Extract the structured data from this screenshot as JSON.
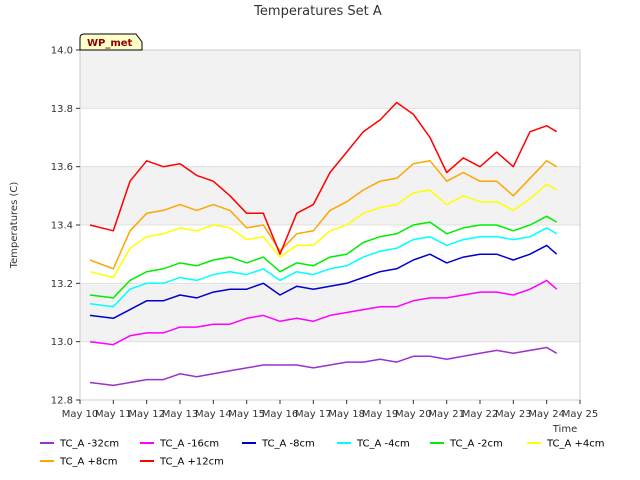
{
  "chart_data": {
    "type": "line",
    "title": "Temperatures Set A",
    "xlabel": "Time",
    "ylabel": "Temperatures (C)",
    "station_label": "WP_met",
    "xlim": [
      10,
      25
    ],
    "ylim": [
      12.8,
      14.0
    ],
    "x_ticks": [
      10,
      11,
      12,
      13,
      14,
      15,
      16,
      17,
      18,
      19,
      20,
      21,
      22,
      23,
      24,
      25
    ],
    "x_tick_labels": [
      "May 10",
      "May 11",
      "May 12",
      "May 13",
      "May 14",
      "May 15",
      "May 16",
      "May 17",
      "May 18",
      "May 19",
      "May 20",
      "May 21",
      "May 22",
      "May 23",
      "May 24",
      "May 25"
    ],
    "y_ticks": [
      12.8,
      13.0,
      13.2,
      13.4,
      13.6,
      13.8,
      14.0
    ],
    "y_tick_labels": [
      "12.8",
      "13.0",
      "13.2",
      "13.4",
      "13.6",
      "13.8",
      "14.0"
    ],
    "grid": true,
    "background_bands": true,
    "legend_position": "bottom",
    "x": [
      10.3,
      11.0,
      11.5,
      12.0,
      12.5,
      13.0,
      13.5,
      14.0,
      14.5,
      15.0,
      15.5,
      16.0,
      16.5,
      17.0,
      17.5,
      18.0,
      18.5,
      19.0,
      19.5,
      20.0,
      20.5,
      21.0,
      21.5,
      22.0,
      22.5,
      23.0,
      23.5,
      24.0,
      24.3
    ],
    "series": [
      {
        "name": "TC_A -32cm",
        "color": "#9932cc",
        "values": [
          12.86,
          12.85,
          12.86,
          12.87,
          12.87,
          12.89,
          12.88,
          12.89,
          12.9,
          12.91,
          12.92,
          12.92,
          12.92,
          12.91,
          12.92,
          12.93,
          12.93,
          12.94,
          12.93,
          12.95,
          12.95,
          12.94,
          12.95,
          12.96,
          12.97,
          12.96,
          12.97,
          12.98,
          12.96
        ]
      },
      {
        "name": "TC_A -16cm",
        "color": "#ff00ff",
        "values": [
          13.0,
          12.99,
          13.02,
          13.03,
          13.03,
          13.05,
          13.05,
          13.06,
          13.06,
          13.08,
          13.09,
          13.07,
          13.08,
          13.07,
          13.09,
          13.1,
          13.11,
          13.12,
          13.12,
          13.14,
          13.15,
          13.15,
          13.16,
          13.17,
          13.17,
          13.16,
          13.18,
          13.21,
          13.18
        ]
      },
      {
        "name": "TC_A -8cm",
        "color": "#0000cd",
        "values": [
          13.09,
          13.08,
          13.11,
          13.14,
          13.14,
          13.16,
          13.15,
          13.17,
          13.18,
          13.18,
          13.2,
          13.16,
          13.19,
          13.18,
          13.19,
          13.2,
          13.22,
          13.24,
          13.25,
          13.28,
          13.3,
          13.27,
          13.29,
          13.3,
          13.3,
          13.28,
          13.3,
          13.33,
          13.3
        ]
      },
      {
        "name": "TC_A -4cm",
        "color": "#00ffff",
        "values": [
          13.13,
          13.12,
          13.18,
          13.2,
          13.2,
          13.22,
          13.21,
          13.23,
          13.24,
          13.23,
          13.25,
          13.21,
          13.24,
          13.23,
          13.25,
          13.26,
          13.29,
          13.31,
          13.32,
          13.35,
          13.36,
          13.33,
          13.35,
          13.36,
          13.36,
          13.35,
          13.36,
          13.39,
          13.37
        ]
      },
      {
        "name": "TC_A -2cm",
        "color": "#00ee00",
        "values": [
          13.16,
          13.15,
          13.21,
          13.24,
          13.25,
          13.27,
          13.26,
          13.28,
          13.29,
          13.27,
          13.29,
          13.24,
          13.27,
          13.26,
          13.29,
          13.3,
          13.34,
          13.36,
          13.37,
          13.4,
          13.41,
          13.37,
          13.39,
          13.4,
          13.4,
          13.38,
          13.4,
          13.43,
          13.41
        ]
      },
      {
        "name": "TC_A +4cm",
        "color": "#ffff00",
        "values": [
          13.24,
          13.22,
          13.32,
          13.36,
          13.37,
          13.39,
          13.38,
          13.4,
          13.39,
          13.35,
          13.36,
          13.29,
          13.33,
          13.33,
          13.38,
          13.4,
          13.44,
          13.46,
          13.47,
          13.51,
          13.52,
          13.47,
          13.5,
          13.48,
          13.48,
          13.45,
          13.49,
          13.54,
          13.52
        ]
      },
      {
        "name": "TC_A +8cm",
        "color": "#ffa500",
        "values": [
          13.28,
          13.25,
          13.38,
          13.44,
          13.45,
          13.47,
          13.45,
          13.47,
          13.45,
          13.39,
          13.4,
          13.31,
          13.37,
          13.38,
          13.45,
          13.48,
          13.52,
          13.55,
          13.56,
          13.61,
          13.62,
          13.55,
          13.58,
          13.55,
          13.55,
          13.5,
          13.56,
          13.62,
          13.6
        ]
      },
      {
        "name": "TC_A +12cm",
        "color": "#ff0000",
        "values": [
          13.4,
          13.38,
          13.55,
          13.62,
          13.6,
          13.61,
          13.57,
          13.55,
          13.5,
          13.44,
          13.44,
          13.3,
          13.44,
          13.47,
          13.58,
          13.65,
          13.72,
          13.76,
          13.82,
          13.78,
          13.7,
          13.58,
          13.63,
          13.6,
          13.65,
          13.6,
          13.72,
          13.74,
          13.72
        ]
      }
    ]
  }
}
